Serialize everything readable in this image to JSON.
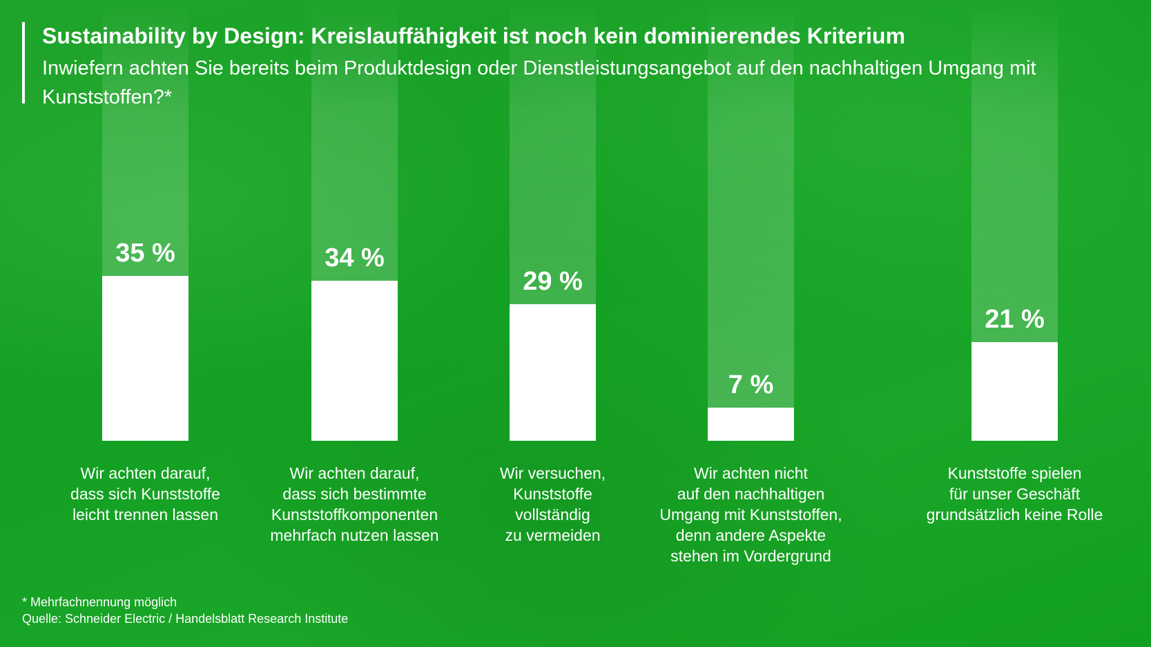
{
  "chart_data": {
    "type": "bar",
    "title": "Sustainability by Design: Kreislauffähigkeit ist noch kein dominierendes Kriterium",
    "subtitle": "Inwiefern achten Sie bereits beim Produktdesign oder Dienstleistungsangebot auf den nachhaltigen Umgang mit Kunststoffen?*",
    "categories": [
      [
        "Wir achten darauf,",
        "dass sich Kunststoffe",
        "leicht trennen lassen"
      ],
      [
        "Wir achten darauf,",
        "dass sich bestimmte",
        "Kunststoffkomponenten",
        "mehrfach nutzen lassen"
      ],
      [
        "Wir versuchen,",
        "Kunststoffe",
        "vollständig",
        "zu vermeiden"
      ],
      [
        "Wir achten nicht",
        "auf den nachhaltigen",
        "Umgang mit Kunststoffen,",
        "denn andere Aspekte",
        "stehen im Vordergrund"
      ],
      [
        "Kunststoffe spielen",
        "für unser Geschäft",
        "grundsätzlich keine Rolle"
      ]
    ],
    "values": [
      35,
      34,
      29,
      7,
      21
    ],
    "value_labels": [
      "35 %",
      "34 %",
      "29 %",
      "7 %",
      "21 %"
    ],
    "unit": "%",
    "grid": false,
    "colors": {
      "background": "#18a326",
      "bar": "#ffffff"
    }
  },
  "footnote": "* Mehrfachnennung möglich",
  "source": "Quelle: Schneider Electric / Handelsblatt Research Institute"
}
